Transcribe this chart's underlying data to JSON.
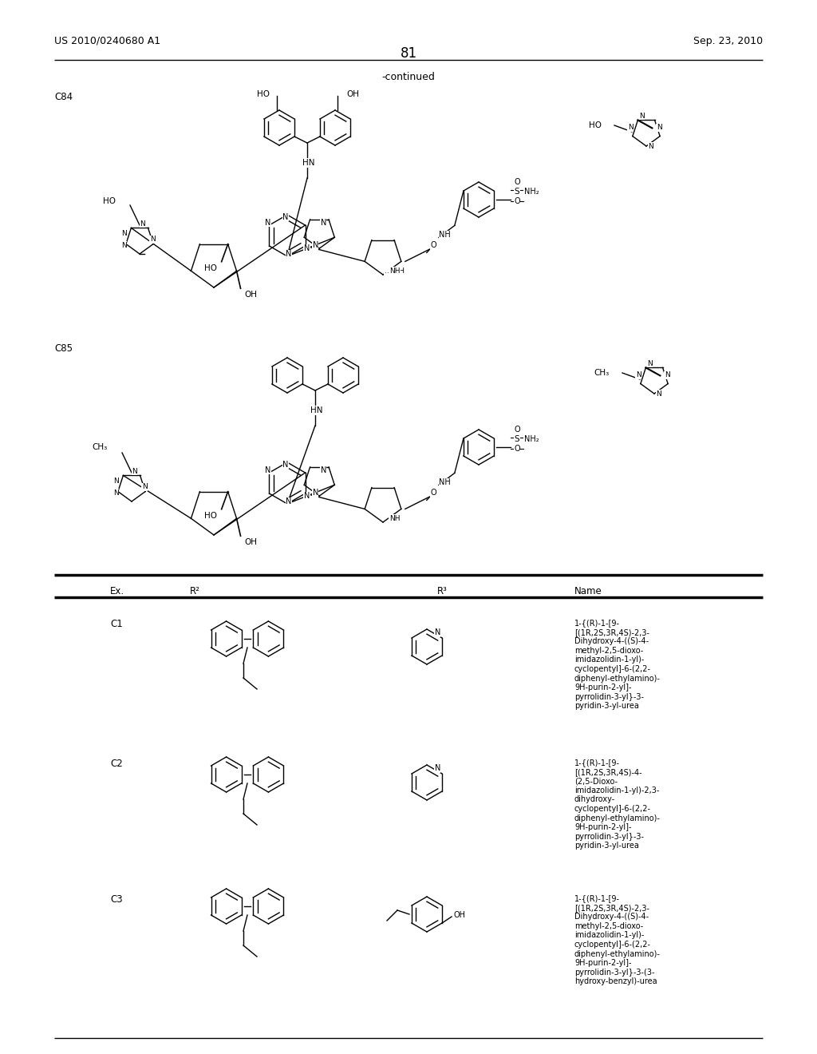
{
  "bg_color": "#ffffff",
  "header_left": "US 2010/0240680 A1",
  "header_right": "Sep. 23, 2010",
  "page_number": "81",
  "continued_text": "-continued",
  "name_c1": "1-{(R)-1-[9-\n[(1R,2S,3R,4S)-2,3-\nDihydroxy-4-((S)-4-\nmethyl-2,5-dioxo-\nimidazolidin-1-yl)-\ncyclopentyl]-6-(2,2-\ndiphenyl-ethylamino)-\n9H-purin-2-yl]-\npyrrolidin-3-yl}-3-\npyridin-3-yl-urea",
  "name_c2": "1-{(R)-1-[9-\n[(1R,2S,3R,4S)-4-\n(2,5-Dioxo-\nimidazolidin-1-yl)-2,3-\ndihydroxy-\ncyclopentyl]-6-(2,2-\ndiphenyl-ethylamino)-\n9H-purin-2-yl]-\npyrrolidin-3-yl}-3-\npyridin-3-yl-urea",
  "name_c3": "1-{(R)-1-[9-\n[(1R,2S,3R,4S)-2,3-\nDihydroxy-4-((S)-4-\nmethyl-2,5-dioxo-\nimidazolidin-1-yl)-\ncyclopentyl]-6-(2,2-\ndiphenyl-ethylamino)-\n9H-purin-2-yl]-\npyrrolidin-3-yl}-3-(3-\nhydroxy-benzyl)-urea"
}
